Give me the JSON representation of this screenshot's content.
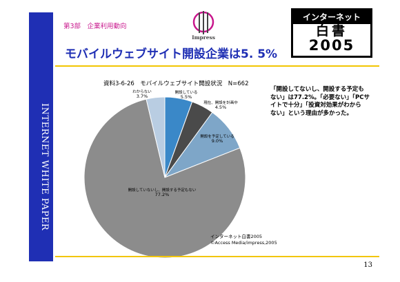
{
  "header": {
    "section": "第3部　企業利用動向",
    "logo_text": "Impress",
    "badge": {
      "top": "インターネット",
      "kanji": "白書",
      "year": "2005"
    }
  },
  "sidebar": {
    "label": "INTERNET WHITE PAPER"
  },
  "slide": {
    "title": "モバイルウェブサイト開設企業は5. 5%"
  },
  "chart_data": {
    "type": "pie",
    "title": "資料3-6-26　モバイルウェブサイト開設状況　N=662",
    "slices": [
      {
        "label": "開設している",
        "value": 5.5,
        "display": "5.5%",
        "color": "#3a88c8"
      },
      {
        "label": "現在、開設を計画中",
        "value": 4.5,
        "display": "4.5%",
        "color": "#4a4a4a"
      },
      {
        "label": "開設を予定している",
        "value": 9.0,
        "display": "9.0%",
        "color": "#7ea6c8"
      },
      {
        "label": "開設していないし、開設する予定もない",
        "value": 77.2,
        "display": "77.2%",
        "color": "#8c8c8c"
      },
      {
        "label": "わからない",
        "value": 3.7,
        "display": "3.7%",
        "color": "#b9cde2"
      }
    ]
  },
  "note": {
    "lines": [
      "「開設してないし、開設する予定も",
      "ない」は77.2%。「必要ない」「PCサ",
      "イトで十分」「投資対効果がわから",
      "ない」という理由が多かった。"
    ]
  },
  "source": {
    "line1": "インターネット白書2005",
    "line2": "©Access Media/impress,2005"
  },
  "page": {
    "number": "13"
  }
}
